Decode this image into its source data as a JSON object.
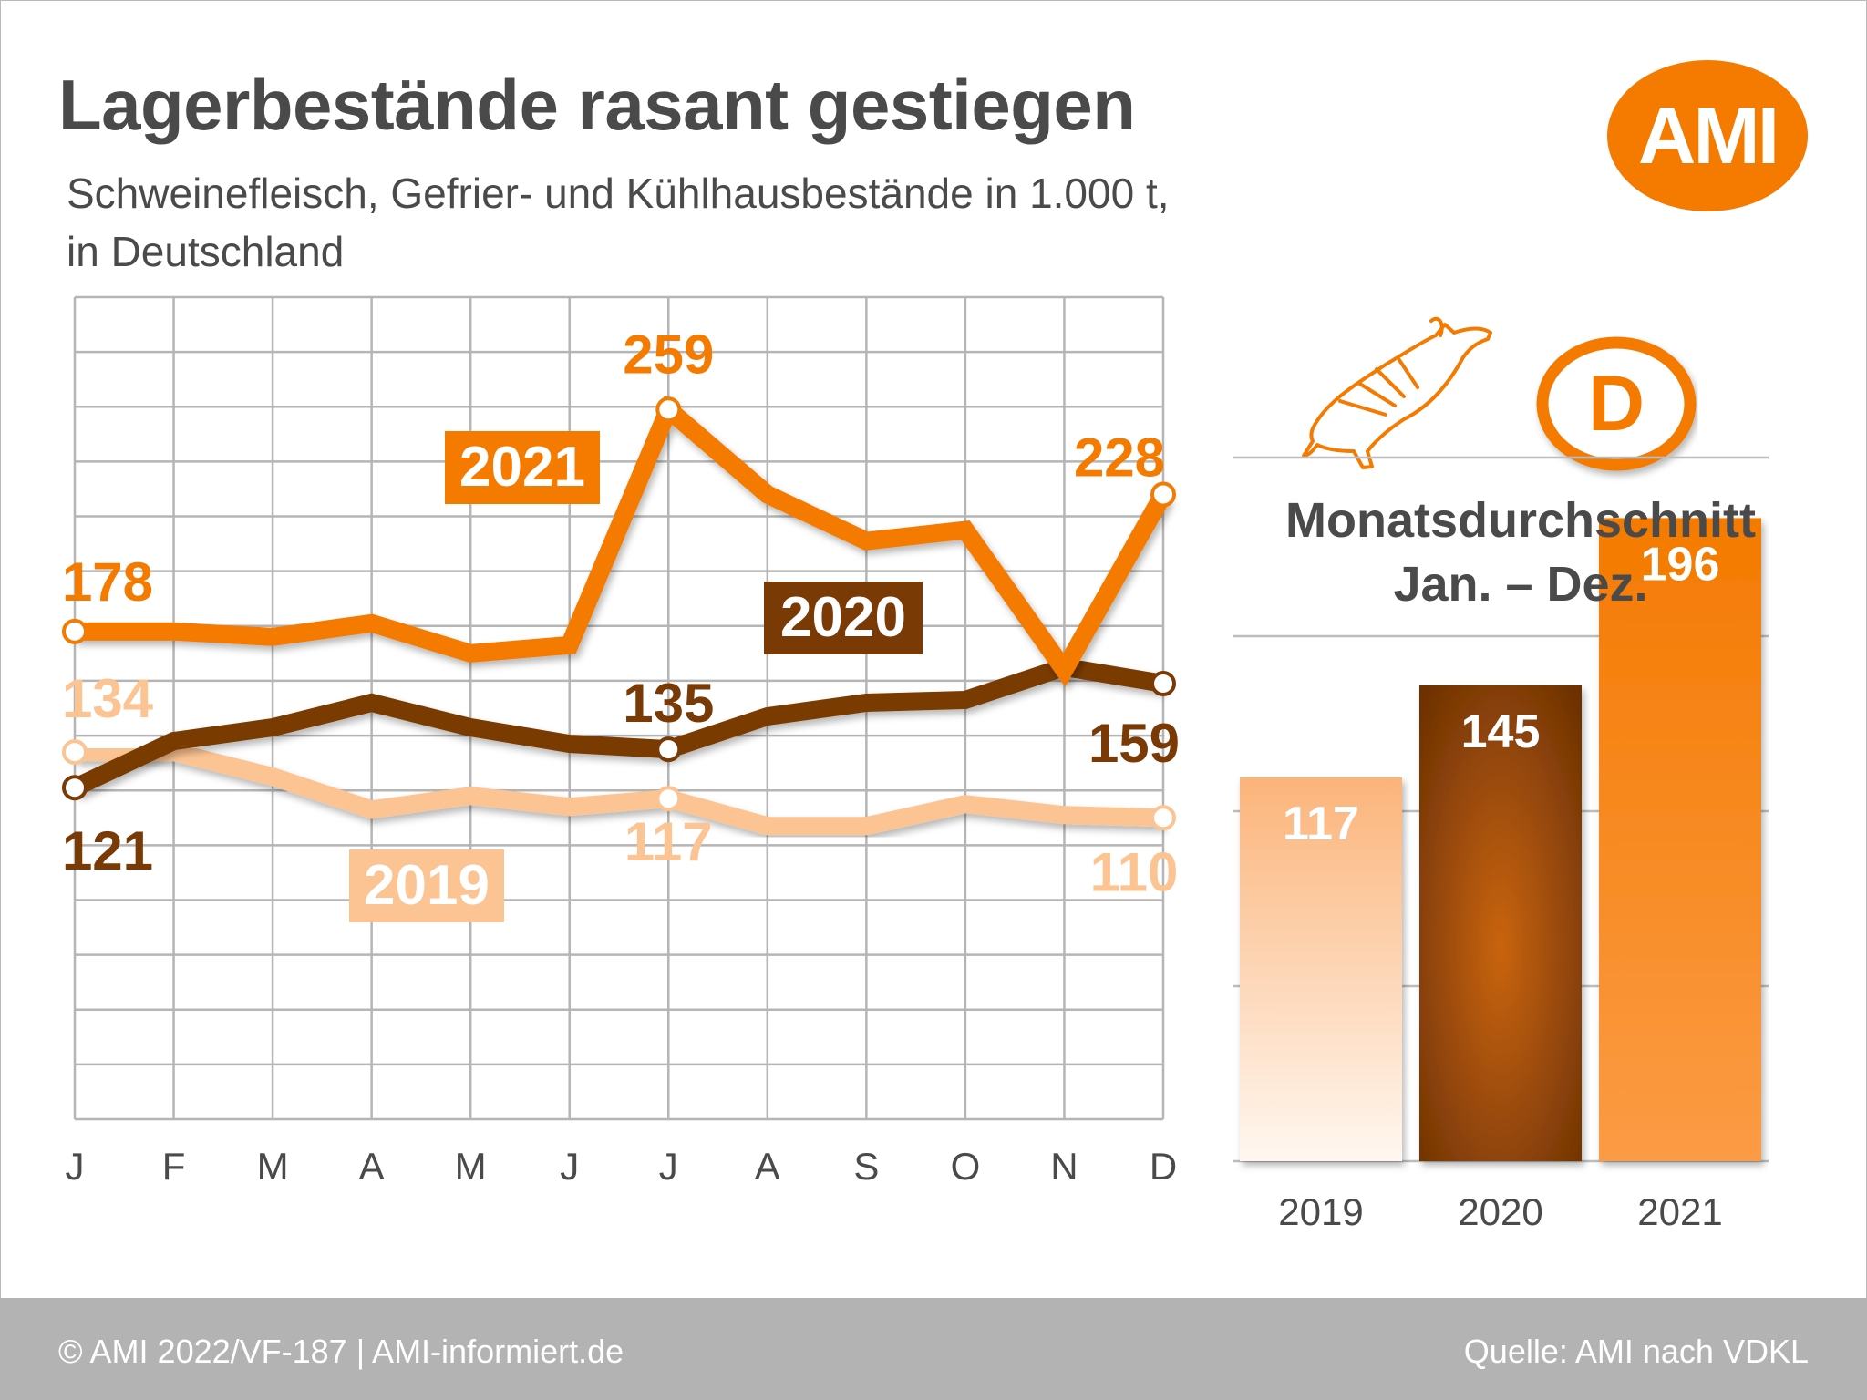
{
  "title": "Lagerbestände rasant gestiegen",
  "subtitle_line1": "Schweinefleisch, Gefrier- und Kühlhausbestände in 1.000 t,",
  "subtitle_line2": "in Deutschland",
  "logo_text": "AMI",
  "country_badge": "D",
  "avg_title_line1": "Monatsdurchschnitt",
  "avg_title_line2": "Jan. –  Dez.",
  "footer_left": "© AMI 2022/VF-187 | AMI-informiert.de",
  "footer_right": "Quelle: AMI nach VDKL",
  "colors": {
    "c2019": "#fcc493",
    "c2020": "#7a3a06",
    "c2021": "#f47a00",
    "text": "#4a4a4a"
  },
  "chart_data": [
    {
      "type": "line",
      "categories": [
        "J",
        "F",
        "M",
        "A",
        "M",
        "J",
        "J",
        "A",
        "S",
        "O",
        "N",
        "D"
      ],
      "ylim": [
        0,
        300
      ],
      "grid": true,
      "series": [
        {
          "name": "2019",
          "values": [
            134,
            134,
            125,
            113,
            118,
            114,
            117,
            107,
            107,
            115,
            111,
            110
          ],
          "labels": [
            {
              "index": 0,
              "text": "134"
            },
            {
              "index": 6,
              "text": "117"
            },
            {
              "index": 11,
              "text": "110"
            }
          ]
        },
        {
          "name": "2020",
          "values": [
            121,
            138,
            143,
            152,
            143,
            137,
            135,
            147,
            152,
            153,
            165,
            159
          ],
          "labels": [
            {
              "index": 0,
              "text": "121"
            },
            {
              "index": 6,
              "text": "135"
            },
            {
              "index": 11,
              "text": "159"
            }
          ]
        },
        {
          "name": "2021",
          "values": [
            178,
            178,
            176,
            181,
            170,
            173,
            259,
            228,
            211,
            215,
            164,
            228
          ],
          "labels": [
            {
              "index": 0,
              "text": "178"
            },
            {
              "index": 6,
              "text": "259"
            },
            {
              "index": 11,
              "text": "228"
            }
          ]
        }
      ]
    },
    {
      "type": "bar",
      "title": "Monatsdurchschnitt Jan. –  Dez.",
      "categories": [
        "2019",
        "2020",
        "2021"
      ],
      "values": [
        117,
        145,
        196
      ],
      "value_labels": [
        "117",
        "145",
        "196"
      ],
      "ylim": [
        0,
        200
      ]
    }
  ]
}
